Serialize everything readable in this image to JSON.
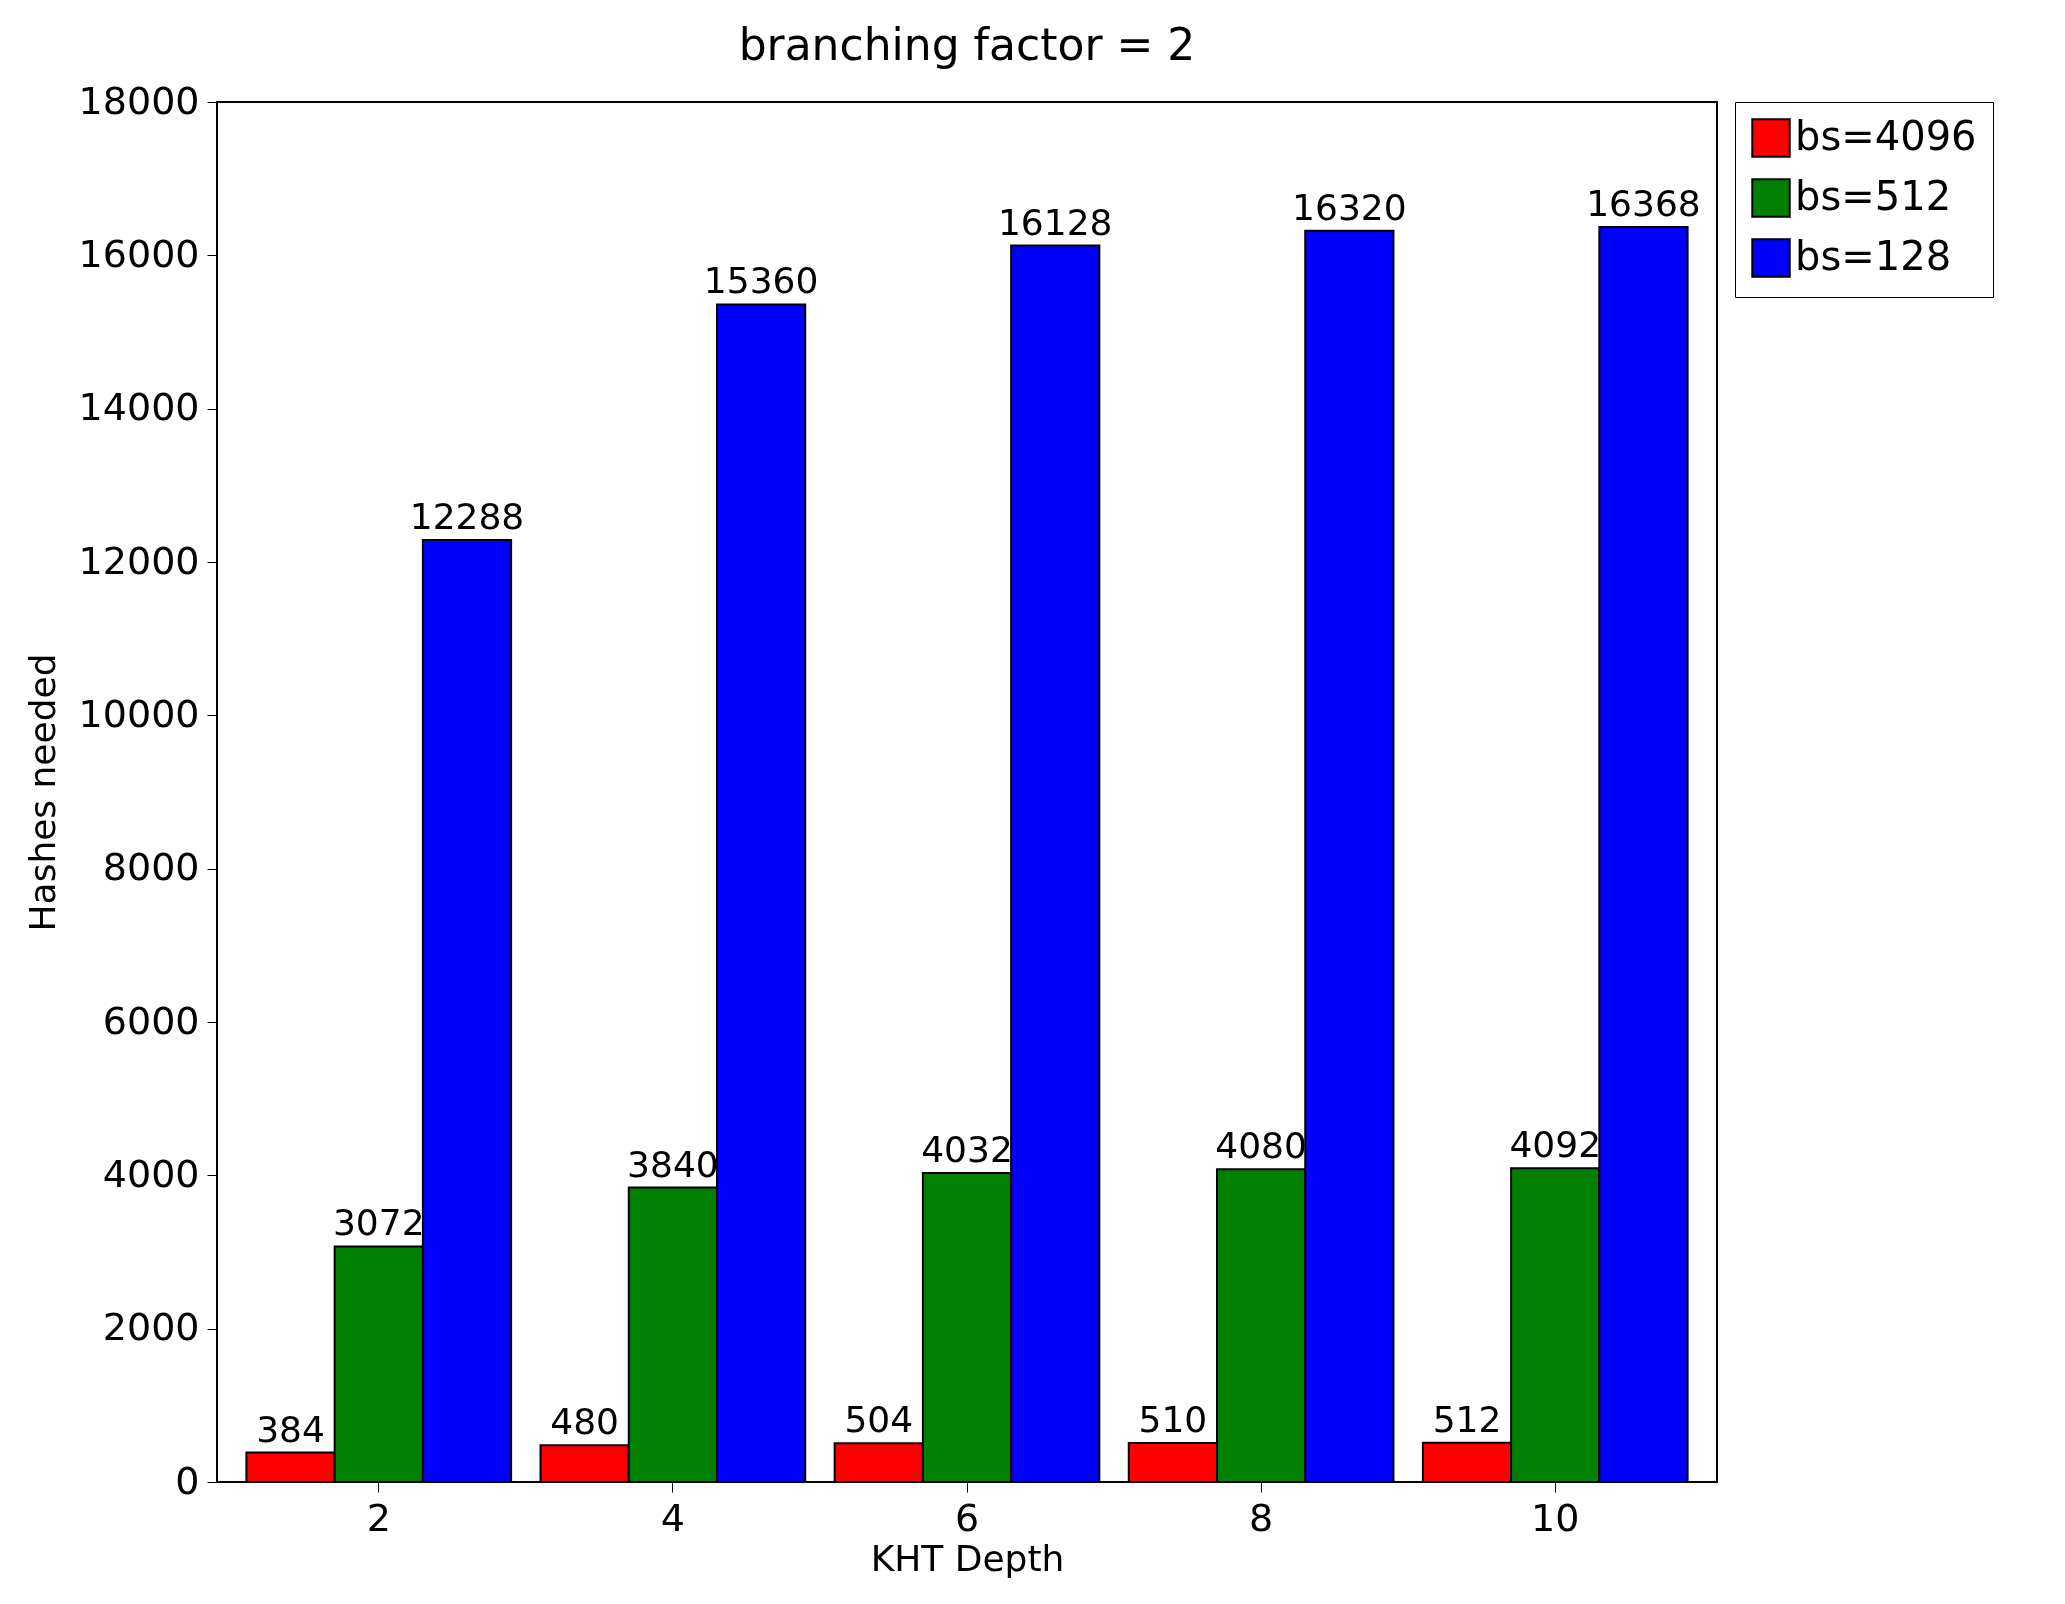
{
  "chart_data": {
    "type": "bar",
    "title": "branching factor = 2",
    "xlabel": "KHT Depth",
    "ylabel": "Hashes needed",
    "categories": [
      "2",
      "4",
      "6",
      "8",
      "10"
    ],
    "series": [
      {
        "name": "bs=4096",
        "color": "#ff0000",
        "values": [
          384,
          480,
          504,
          510,
          512
        ]
      },
      {
        "name": "bs=512",
        "color": "#008000",
        "values": [
          3072,
          3840,
          4032,
          4080,
          4092
        ]
      },
      {
        "name": "bs=128",
        "color": "#0000ff",
        "values": [
          12288,
          15360,
          16128,
          16320,
          16368
        ]
      }
    ],
    "ylim": [
      0,
      18000
    ],
    "yticks": [
      0,
      2000,
      4000,
      6000,
      8000,
      10000,
      12000,
      14000,
      16000,
      18000
    ],
    "data_labels": true,
    "grid": false,
    "legend": "right"
  }
}
